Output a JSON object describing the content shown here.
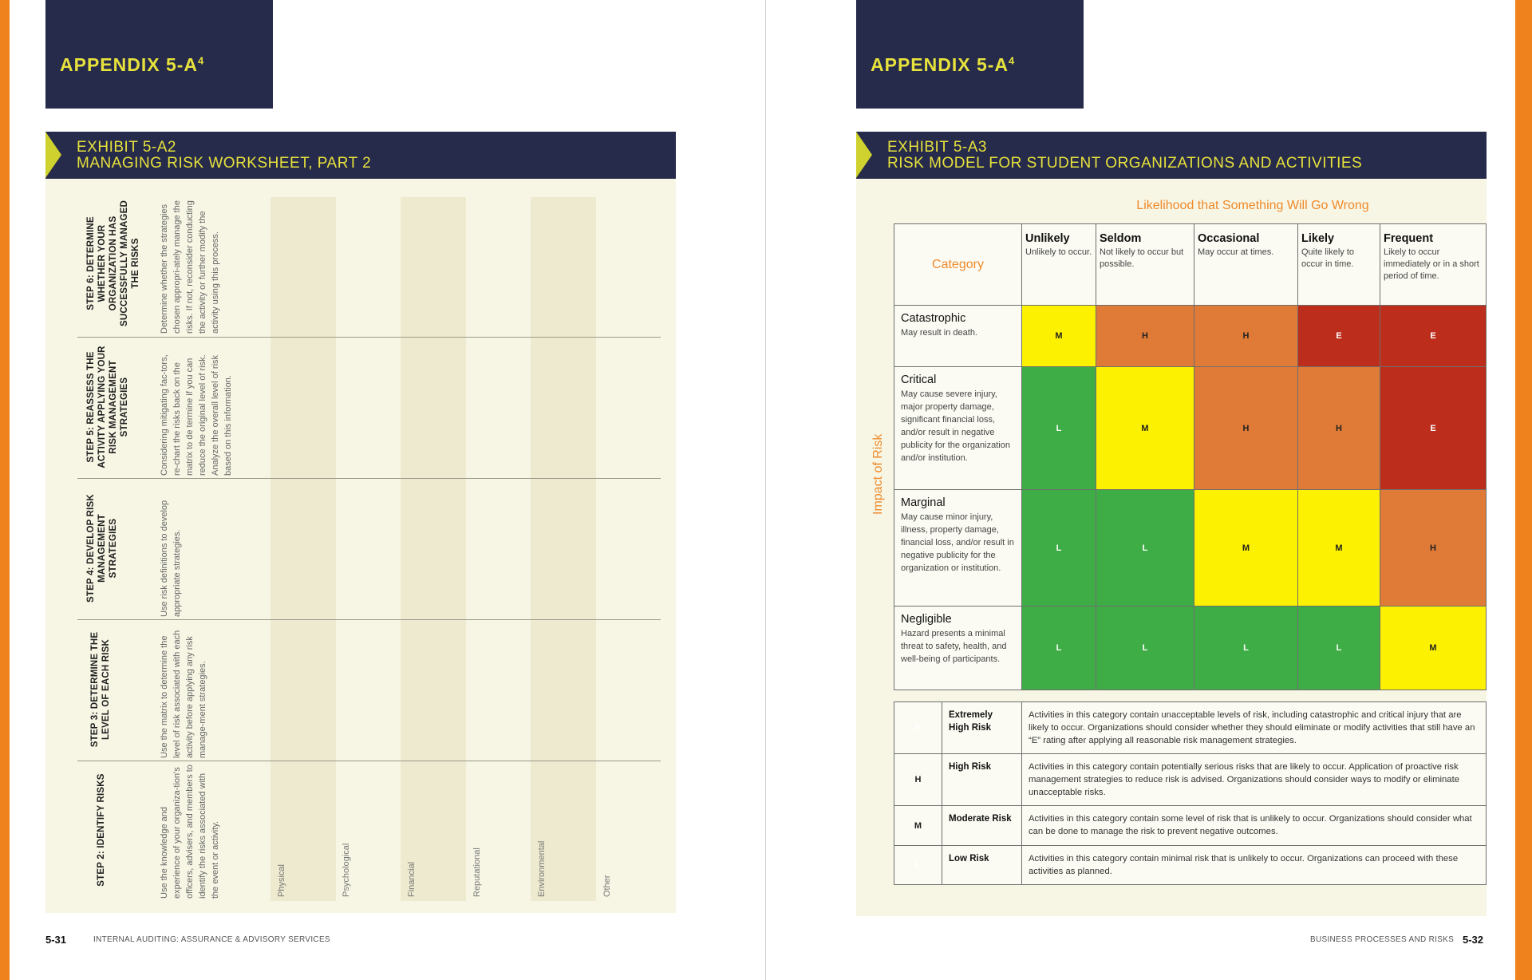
{
  "left": {
    "appendix": "APPENDIX 5-A",
    "appendix_sup": "4",
    "exhibit_label": "EXHIBIT 5-A2",
    "exhibit_title": "MANAGING RISK WORKSHEET, PART 2",
    "steps": [
      {
        "head": "STEP 6: DETERMINE WHETHER YOUR ORGANIZATION HAS SUCCESSFULLY MANAGED THE RISKS",
        "desc": "Determine whether the strategies chosen appropri-ately manage the risks. If not, reconsider conducting the activity or further modify the activity using this process."
      },
      {
        "head": "STEP 5: REASSESS THE ACTIVITY APPLYING YOUR RISK MANAGEMENT STRATEGIES",
        "desc": "Considering mitigating fac-tors, re-chart the risks back on the matrix to de termine if you can reduce the original level of risk. Analyze the overall level of risk based on this information."
      },
      {
        "head": "STEP 4: DEVELOP RISK MANAGEMENT STRATEGIES",
        "desc": "Use risk definitions to develop appropriate strategies."
      },
      {
        "head": "STEP 3: DETERMINE THE LEVEL OF EACH RISK",
        "desc": "Use the matrix to determine the level of risk associated with each activity before applying any risk manage-ment strategies."
      },
      {
        "head": "STEP 2: IDENTIFY RISKS",
        "desc": "Use the knowledge and experience of your organiza-tion's officers, advisers, and members to identify the risks associated with the event or activity."
      }
    ],
    "categories": [
      "Physical",
      "Psychological",
      "Financial",
      "Reputational",
      "Environmental",
      "Other"
    ],
    "page_number": "5-31",
    "footer": "INTERNAL AUDITING: ASSURANCE & ADVISORY SERVICES"
  },
  "right": {
    "appendix": "APPENDIX 5-A",
    "appendix_sup": "4",
    "exhibit_label": "EXHIBIT 5-A3",
    "exhibit_title": "RISK MODEL FOR STUDENT ORGANIZATIONS AND ACTIVITIES",
    "likelihood_title": "Likelihood that Something Will Go Wrong",
    "impact_title": "Impact of Risk",
    "category_header": "Category",
    "columns": [
      {
        "name": "Unlikely",
        "desc": "Unlikely to occur."
      },
      {
        "name": "Seldom",
        "desc": "Not likely to occur but possible."
      },
      {
        "name": "Occasional",
        "desc": "May occur at times."
      },
      {
        "name": "Likely",
        "desc": "Quite likely to occur in time."
      },
      {
        "name": "Frequent",
        "desc": "Likely to occur immediately or in a short period of time."
      }
    ],
    "rows": [
      {
        "name": "Catastrophic",
        "desc": "May result in death.",
        "cells": [
          "M",
          "H",
          "H",
          "E",
          "E"
        ]
      },
      {
        "name": "Critical",
        "desc": "May cause severe injury, major property damage, significant financial loss, and/or result in negative publicity for the organization and/or institution.",
        "cells": [
          "L",
          "M",
          "H",
          "H",
          "E"
        ]
      },
      {
        "name": "Marginal",
        "desc": "May cause minor injury, illness, property damage, financial loss, and/or result in negative publicity for the organization or institution.",
        "cells": [
          "L",
          "L",
          "M",
          "M",
          "H"
        ]
      },
      {
        "name": "Negligible",
        "desc": "Hazard presents a minimal threat to safety, health, and well-being of participants.",
        "cells": [
          "L",
          "L",
          "L",
          "L",
          "M"
        ]
      }
    ],
    "legend": [
      {
        "code": "E",
        "name": "Extremely High Risk",
        "desc": "Activities in this category contain unacceptable levels of risk, including catastrophic and critical injury that are likely to occur. Organizations should consider whether they should eliminate or modify activities that still have an “E” rating after applying all reasonable risk management strategies."
      },
      {
        "code": "H",
        "name": "High Risk",
        "desc": "Activities in this category contain potentially serious risks that are likely to occur. Application of proactive risk management strategies to reduce risk is advised. Organizations should consider ways to modify or eliminate unacceptable risks."
      },
      {
        "code": "M",
        "name": "Moderate Risk",
        "desc": "Activities in this category contain some level of risk that is unlikely to occur. Organizations should consider what can be done to manage the risk to prevent negative outcomes."
      },
      {
        "code": "L",
        "name": "Low Risk",
        "desc": "Activities in this category contain minimal risk that is unlikely to occur. Organizations can proceed with these activities as planned."
      }
    ],
    "page_number": "5-32",
    "footer": "BUSINESS PROCESSES AND RISKS"
  },
  "colors": {
    "extreme": "#bd2d1c",
    "high": "#df7b36",
    "moderate": "#fbf100",
    "low": "#3fad46",
    "navy": "#262a4b",
    "accent": "#f0821e"
  }
}
